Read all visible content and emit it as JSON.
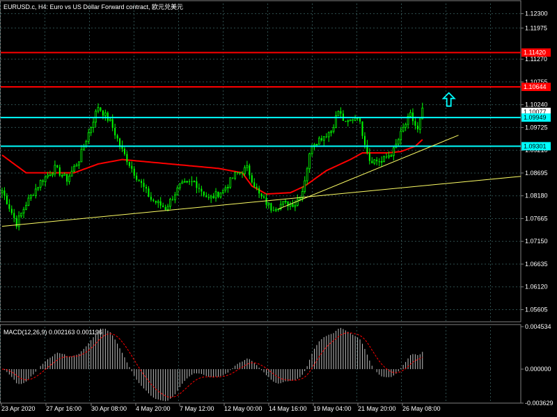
{
  "header": {
    "title": "EURUSD.c, H4:  Euro vs US Dollar Forward contract, 欧元兑美元"
  },
  "colors": {
    "background": "#000000",
    "grid": "#2f4f4f",
    "bull_candle": "#00ff00",
    "bear_candle": "#00ff00",
    "moving_average": "#ff0000",
    "trendline": "#ffff66",
    "resistance": "#ff0000",
    "support": "#00ffff",
    "arrow": "#00ffff",
    "macd_hist": "#c0c0c0",
    "macd_signal": "#ff0000",
    "text": "#ffffff"
  },
  "chart_data": [
    {
      "type": "candlestick",
      "title": "EURUSD.c, H4:  Euro vs US Dollar Forward contract, 欧元兑美元",
      "ylim": [
        1.0533,
        1.1253
      ],
      "y_ticks": [
        "1.12300",
        "1.11975",
        "1.11270",
        "1.10755",
        "1.10240",
        "1.09725",
        "1.09210",
        "1.08695",
        "1.08180",
        "1.07665",
        "1.07150",
        "1.06635",
        "1.06120",
        "1.05605"
      ],
      "x_ticks": [
        "23 Apr 2020",
        "27 Apr 16:00",
        "30 Apr 08:00",
        "4 May 20:00",
        "7 May 12:00",
        "12 May 00:00",
        "14 May 16:00",
        "19 May 04:00",
        "21 May 20:00",
        "26 May 08:00"
      ],
      "anchors": [
        [
          0,
          1.083
        ],
        [
          6,
          1.0755
        ],
        [
          10,
          1.08
        ],
        [
          16,
          1.085
        ],
        [
          22,
          1.088
        ],
        [
          27,
          1.0855
        ],
        [
          32,
          1.09
        ],
        [
          37,
          1.0975
        ],
        [
          40,
          1.102
        ],
        [
          45,
          1.0985
        ],
        [
          50,
          1.092
        ],
        [
          55,
          1.087
        ],
        [
          62,
          1.081
        ],
        [
          68,
          1.079
        ],
        [
          74,
          1.084
        ],
        [
          80,
          1.085
        ],
        [
          86,
          1.081
        ],
        [
          92,
          1.083
        ],
        [
          97,
          1.0865
        ],
        [
          102,
          1.088
        ],
        [
          107,
          1.082
        ],
        [
          112,
          1.079
        ],
        [
          117,
          1.08
        ],
        [
          122,
          1.08
        ],
        [
          125,
          1.083
        ],
        [
          129,
          1.0935
        ],
        [
          133,
          1.095
        ],
        [
          137,
          1.0965
        ],
        [
          140,
          1.101
        ],
        [
          143,
          1.098
        ],
        [
          148,
          1.1
        ],
        [
          153,
          1.09
        ],
        [
          158,
          1.0895
        ],
        [
          163,
          1.092
        ],
        [
          167,
          1.097
        ],
        [
          170,
          1.1
        ],
        [
          173,
          1.0965
        ],
        [
          175,
          1.101
        ]
      ],
      "moving_average": [
        [
          0,
          1.091
        ],
        [
          10,
          1.087
        ],
        [
          20,
          1.087
        ],
        [
          30,
          1.087
        ],
        [
          40,
          1.089
        ],
        [
          50,
          1.09
        ],
        [
          60,
          1.0895
        ],
        [
          70,
          1.089
        ],
        [
          80,
          1.0885
        ],
        [
          90,
          1.088
        ],
        [
          100,
          1.087
        ],
        [
          104,
          1.084
        ],
        [
          110,
          1.0822
        ],
        [
          120,
          1.0825
        ],
        [
          126,
          1.084
        ],
        [
          135,
          1.0875
        ],
        [
          145,
          1.09
        ],
        [
          150,
          1.0915
        ],
        [
          160,
          1.0915
        ],
        [
          166,
          1.0918
        ],
        [
          172,
          1.093
        ],
        [
          175,
          1.0945
        ]
      ],
      "trendlines": [
        {
          "from": [
            0,
            1.0749
          ],
          "to": [
            216,
            1.0862
          ]
        },
        {
          "from": [
            115,
            1.0788
          ],
          "to": [
            190,
            1.0955
          ]
        }
      ],
      "horizontal_levels": [
        {
          "value": 1.1142,
          "label": "1.11420",
          "kind": "resistance"
        },
        {
          "value": 1.10644,
          "label": "1.10644",
          "kind": "resistance"
        },
        {
          "value": 1.10077,
          "label": "1.10077",
          "kind": "current"
        },
        {
          "value": 1.09949,
          "label": "1.09949",
          "kind": "support"
        },
        {
          "value": 1.09301,
          "label": "1.09301",
          "kind": "support"
        }
      ],
      "arrow": {
        "index": 186,
        "price": 1.1035,
        "direction": "up"
      }
    },
    {
      "type": "bar",
      "title": "MACD(12,26,9) 0.002163 0.001196",
      "ylim": [
        -0.003629,
        0.004534
      ],
      "y_ticks": [
        "0.004534",
        "0.000000",
        "-0.003629"
      ],
      "series": [
        {
          "name": "MACD",
          "kind": "histogram"
        },
        {
          "name": "Signal",
          "kind": "line"
        }
      ]
    }
  ]
}
